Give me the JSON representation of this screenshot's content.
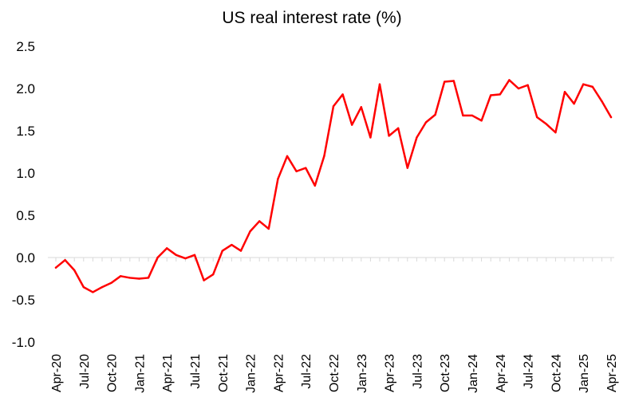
{
  "chart_data": {
    "type": "line",
    "title": "US real interest rate (%)",
    "xlabel": "",
    "ylabel": "",
    "ylim": [
      -1.0,
      2.5
    ],
    "y_ticks": [
      "2.5",
      "2.0",
      "1.5",
      "1.0",
      "0.5",
      "0.0",
      "-0.5",
      "-1.0"
    ],
    "y_tick_values": [
      2.5,
      2.0,
      1.5,
      1.0,
      0.5,
      0.0,
      -0.5,
      -1.0
    ],
    "x_tick_labels": [
      "Apr-20",
      "Jul-20",
      "Oct-20",
      "Jan-21",
      "Apr-21",
      "Jul-21",
      "Oct-21",
      "Jan-22",
      "Apr-22",
      "Jul-22",
      "Oct-22",
      "Jan-23",
      "Apr-23",
      "Jul-23",
      "Oct-23",
      "Jan-24",
      "Apr-24",
      "Jul-24",
      "Oct-24",
      "Jan-25",
      "Apr-25"
    ],
    "grid": false,
    "series": [
      {
        "name": "US real interest rate",
        "color": "#ff0000",
        "values": [
          -0.12,
          -0.03,
          -0.15,
          -0.35,
          -0.41,
          -0.35,
          -0.3,
          -0.22,
          -0.24,
          -0.25,
          -0.24,
          0.0,
          0.11,
          0.03,
          -0.01,
          0.03,
          -0.27,
          -0.2,
          0.08,
          0.15,
          0.08,
          0.31,
          0.43,
          0.34,
          0.93,
          1.2,
          1.02,
          1.06,
          0.85,
          1.2,
          1.79,
          1.93,
          1.57,
          1.78,
          1.42,
          2.05,
          1.44,
          1.53,
          1.06,
          1.42,
          1.6,
          1.69,
          2.08,
          2.09,
          1.68,
          1.68,
          1.62,
          1.92,
          1.93,
          2.1,
          2.0,
          2.04,
          1.66,
          1.58,
          1.48,
          1.96,
          1.82,
          2.05,
          2.02,
          1.85,
          1.66
        ]
      }
    ]
  }
}
